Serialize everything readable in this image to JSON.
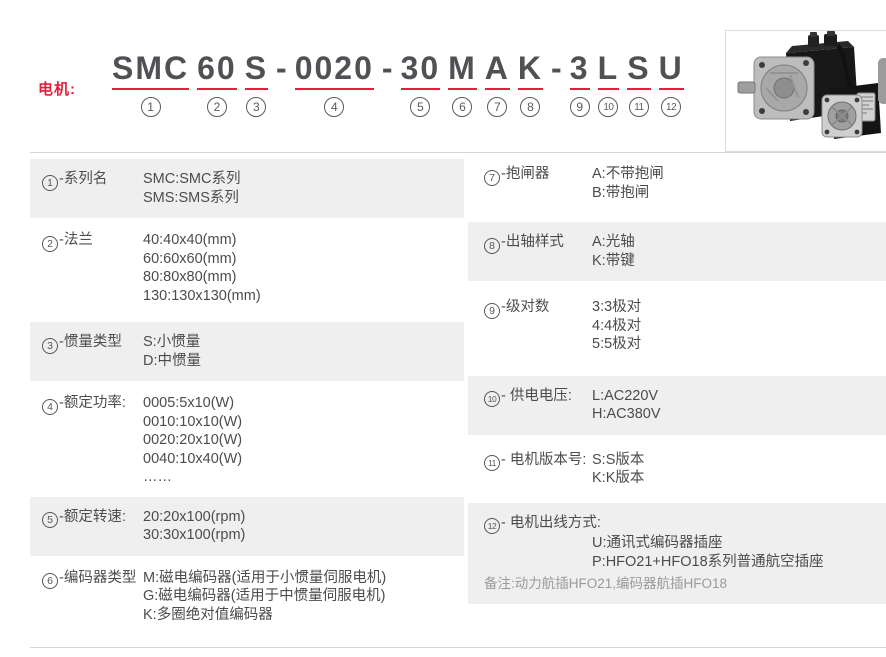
{
  "colors": {
    "accent_red": "#e61e3c",
    "model_text": "#515155",
    "body_text": "#4c4c4c",
    "note_text": "#9a9a9a",
    "row_band": "#efefef",
    "divider": "#d6d6d6"
  },
  "header": {
    "motor_label": "电机:"
  },
  "model": {
    "full_code": "SMC60S-0020-30MAK-3LSU",
    "segments": [
      {
        "text": "SMC",
        "num": "1"
      },
      {
        "text": "60",
        "num": "2"
      },
      {
        "text": "S",
        "num": "3"
      },
      {
        "text": "-",
        "num": ""
      },
      {
        "text": "0020",
        "num": "4"
      },
      {
        "text": "-",
        "num": ""
      },
      {
        "text": "30",
        "num": "5"
      },
      {
        "text": "M",
        "num": "6"
      },
      {
        "text": "A",
        "num": "7"
      },
      {
        "text": "K",
        "num": "8"
      },
      {
        "text": "-",
        "num": ""
      },
      {
        "text": "3",
        "num": "9"
      },
      {
        "text": "L",
        "num": "10"
      },
      {
        "text": "S",
        "num": "11"
      },
      {
        "text": "U",
        "num": "12"
      }
    ]
  },
  "columns": {
    "left": [
      {
        "num": "1",
        "label": "-系列名",
        "lines": [
          "SMC:SMC系列",
          "SMS:SMS系列"
        ]
      },
      {
        "num": "2",
        "label": "-法兰",
        "lines": [
          "40:40x40(mm)",
          "60:60x60(mm)",
          "80:80x80(mm)",
          "130:130x130(mm)"
        ]
      },
      {
        "num": "3",
        "label": "-惯量类型",
        "lines": [
          "S:小惯量",
          "D:中惯量"
        ]
      },
      {
        "num": "4",
        "label": "-额定功率:",
        "lines": [
          "0005:5x10(W)",
          "0010:10x10(W)",
          "0020:20x10(W)",
          "0040:10x40(W)",
          "……"
        ]
      },
      {
        "num": "5",
        "label": "-额定转速:",
        "lines": [
          "20:20x100(rpm)",
          "30:30x100(rpm)"
        ]
      },
      {
        "num": "6",
        "label": "-编码器类型",
        "lines": [
          "M:磁电编码器(适用于小惯量伺服电机)",
          "G:磁电编码器(适用于中惯量伺服电机)",
          "K:多圈绝对值编码器"
        ]
      }
    ],
    "right": [
      {
        "num": "7",
        "label": "-抱闸器",
        "lines": [
          "A:不带抱闸",
          "B:带抱闸"
        ]
      },
      {
        "num": "8",
        "label": "-出轴样式",
        "lines": [
          "A:光轴",
          "K:带键"
        ]
      },
      {
        "num": "9",
        "label": "-级对数",
        "lines": [
          "3:3极对",
          "4:4极对",
          "5:5极对"
        ]
      },
      {
        "num": "10",
        "label": "- 供电电压:",
        "lines": [
          "L:AC220V",
          "H:AC380V"
        ]
      },
      {
        "num": "11",
        "label": "- 电机版本号:",
        "lines": [
          "S:S版本",
          "K:K版本"
        ]
      },
      {
        "num": "12",
        "label": "- 电机出线方式:",
        "stacked": true,
        "lines": [
          "U:通讯式编码器插座",
          "P:HFO21+HFO18系列普通航空插座"
        ],
        "note": "备注:动力航插HFO21,编码器航插HFO18"
      }
    ]
  }
}
